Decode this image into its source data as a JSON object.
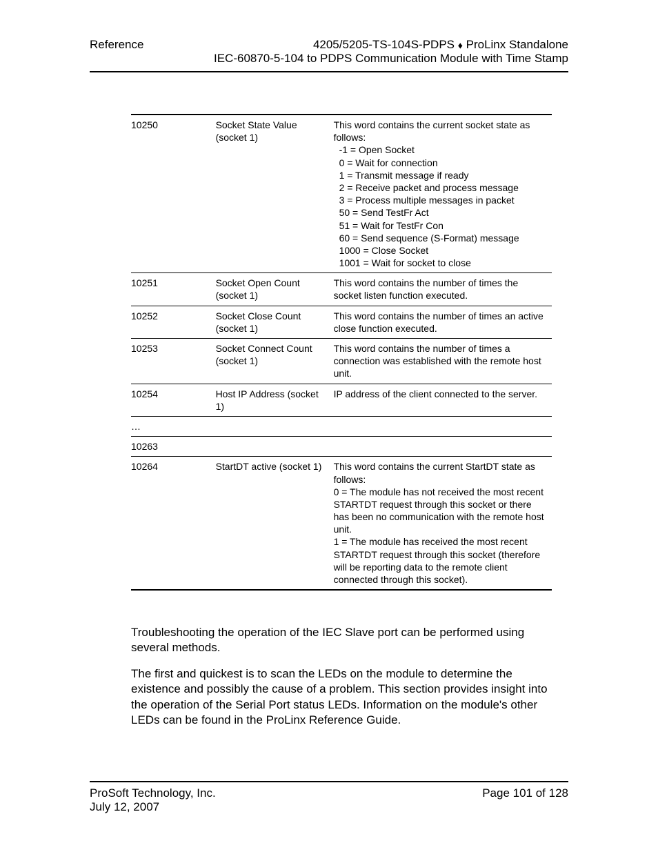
{
  "header": {
    "left": "Reference",
    "right_line1_before": "4205/5205-TS-104S-PDPS ",
    "right_line1_after": " ProLinx Standalone",
    "right_line2": "IEC-60870-5-104 to PDPS Communication Module with Time Stamp",
    "diamond": "♦"
  },
  "table": {
    "rows": [
      {
        "addr": "10250",
        "name": "Socket State Value (socket 1)",
        "desc": "This word contains the current socket state as follows:",
        "sub": [
          "-1 = Open Socket",
          "0 = Wait for connection",
          "1 = Transmit message if ready",
          "2 = Receive packet and process message",
          "3 = Process multiple messages in packet",
          "50 = Send TestFr Act",
          "51 = Wait for TestFr Con",
          "60 = Send sequence (S-Format) message",
          "1000 = Close Socket",
          "1001 = Wait for socket to close"
        ]
      },
      {
        "addr": "10251",
        "name": "Socket Open Count (socket 1)",
        "desc": "This word contains the number of times the socket listen function executed."
      },
      {
        "addr": "10252",
        "name": "Socket Close Count (socket 1)",
        "desc": "This word contains the number of times an active close function executed."
      },
      {
        "addr": "10253",
        "name": "Socket Connect Count (socket 1)",
        "desc": "This word contains the number of times a connection was established with the remote host unit."
      },
      {
        "addr": "10254",
        "name": "Host IP Address (socket 1)",
        "desc": "IP address of the client connected to the server."
      },
      {
        "addr": "…",
        "name": "",
        "desc": ""
      },
      {
        "addr": "10263",
        "name": "",
        "desc": ""
      },
      {
        "addr": "10264",
        "name": "StartDT active (socket 1)",
        "desc": "This word contains the current StartDT state as follows:\n0 = The module has not received the most recent STARTDT request through this socket or there has been no communication with the remote host unit.\n1 = The module has received the most recent STARTDT request through this socket (therefore will be reporting data to the remote client connected through this socket)."
      }
    ]
  },
  "body": {
    "p1": "Troubleshooting the operation of the IEC Slave port can be performed using several methods.",
    "p2": "The first and quickest is to scan the LEDs on the module to determine the existence and possibly the cause of a problem. This section provides insight into the operation of the Serial Port status LEDs. Information on the module's other LEDs can be found in the ProLinx Reference Guide."
  },
  "footer": {
    "left_line1": "ProSoft Technology, Inc.",
    "left_line2": "July 12, 2007",
    "right": "Page 101 of 128"
  }
}
